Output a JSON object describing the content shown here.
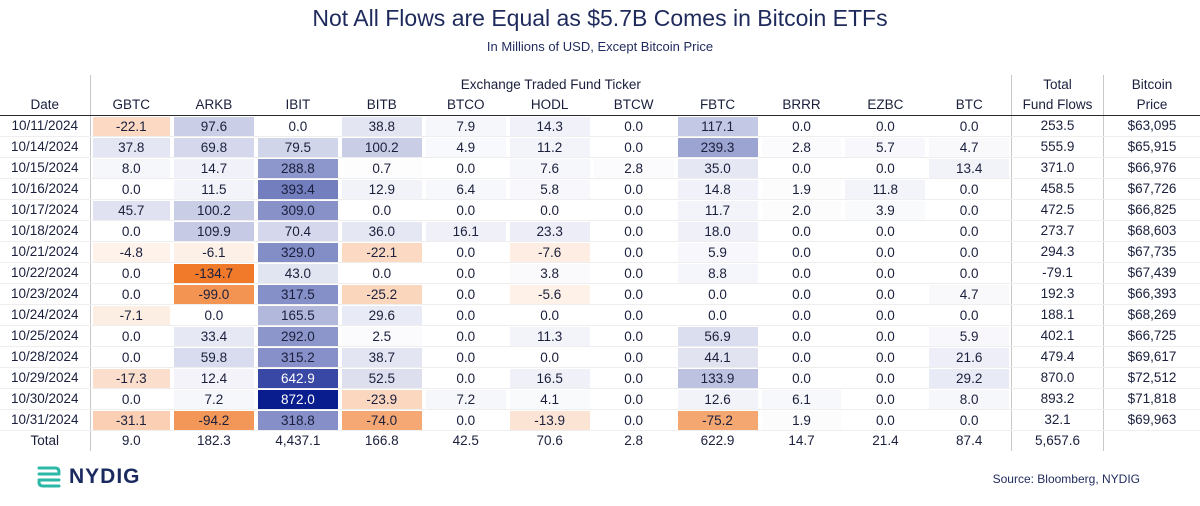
{
  "header": {
    "title": "Not All Flows are Equal as $5.7B Comes in Bitcoin ETFs",
    "subtitle": "In Millions of USD, Except Bitcoin Price"
  },
  "chart_data": {
    "type": "table",
    "group_label": "Exchange Traded Fund Ticker",
    "columns": {
      "date": "Date",
      "tickers": [
        "GBTC",
        "ARKB",
        "IBIT",
        "BITB",
        "BTCO",
        "HODL",
        "BTCW",
        "FBTC",
        "BRRR",
        "EZBC",
        "BTC"
      ],
      "total_line1": "Total",
      "total_line2": "Fund Flows",
      "price_line1": "Bitcoin",
      "price_line2": "Price"
    },
    "rows": [
      {
        "date": "10/11/2024",
        "values": [
          "-22.1",
          "97.6",
          "0.0",
          "38.8",
          "7.9",
          "14.3",
          "0.0",
          "117.1",
          "0.0",
          "0.0",
          "0.0"
        ],
        "total": "253.5",
        "price": "$63,095"
      },
      {
        "date": "10/14/2024",
        "values": [
          "37.8",
          "69.8",
          "79.5",
          "100.2",
          "4.9",
          "11.2",
          "0.0",
          "239.3",
          "2.8",
          "5.7",
          "4.7"
        ],
        "total": "555.9",
        "price": "$65,915"
      },
      {
        "date": "10/15/2024",
        "values": [
          "8.0",
          "14.7",
          "288.8",
          "0.7",
          "0.0",
          "7.6",
          "2.8",
          "35.0",
          "0.0",
          "0.0",
          "13.4"
        ],
        "total": "371.0",
        "price": "$66,976"
      },
      {
        "date": "10/16/2024",
        "values": [
          "0.0",
          "11.5",
          "393.4",
          "12.9",
          "6.4",
          "5.8",
          "0.0",
          "14.8",
          "1.9",
          "11.8",
          "0.0"
        ],
        "total": "458.5",
        "price": "$67,726"
      },
      {
        "date": "10/17/2024",
        "values": [
          "45.7",
          "100.2",
          "309.0",
          "0.0",
          "0.0",
          "0.0",
          "0.0",
          "11.7",
          "2.0",
          "3.9",
          "0.0"
        ],
        "total": "472.5",
        "price": "$66,825"
      },
      {
        "date": "10/18/2024",
        "values": [
          "0.0",
          "109.9",
          "70.4",
          "36.0",
          "16.1",
          "23.3",
          "0.0",
          "18.0",
          "0.0",
          "0.0",
          "0.0"
        ],
        "total": "273.7",
        "price": "$68,603"
      },
      {
        "date": "10/21/2024",
        "values": [
          "-4.8",
          "-6.1",
          "329.0",
          "-22.1",
          "0.0",
          "-7.6",
          "0.0",
          "5.9",
          "0.0",
          "0.0",
          "0.0"
        ],
        "total": "294.3",
        "price": "$67,735"
      },
      {
        "date": "10/22/2024",
        "values": [
          "0.0",
          "-134.7",
          "43.0",
          "0.0",
          "0.0",
          "3.8",
          "0.0",
          "8.8",
          "0.0",
          "0.0",
          "0.0"
        ],
        "total": "-79.1",
        "price": "$67,439"
      },
      {
        "date": "10/23/2024",
        "values": [
          "0.0",
          "-99.0",
          "317.5",
          "-25.2",
          "0.0",
          "-5.6",
          "0.0",
          "0.0",
          "0.0",
          "0.0",
          "4.7"
        ],
        "total": "192.3",
        "price": "$66,393"
      },
      {
        "date": "10/24/2024",
        "values": [
          "-7.1",
          "0.0",
          "165.5",
          "29.6",
          "0.0",
          "0.0",
          "0.0",
          "0.0",
          "0.0",
          "0.0",
          "0.0"
        ],
        "total": "188.1",
        "price": "$68,269"
      },
      {
        "date": "10/25/2024",
        "values": [
          "0.0",
          "33.4",
          "292.0",
          "2.5",
          "0.0",
          "11.3",
          "0.0",
          "56.9",
          "0.0",
          "0.0",
          "5.9"
        ],
        "total": "402.1",
        "price": "$66,725"
      },
      {
        "date": "10/28/2024",
        "values": [
          "0.0",
          "59.8",
          "315.2",
          "38.7",
          "0.0",
          "0.0",
          "0.0",
          "44.1",
          "0.0",
          "0.0",
          "21.6"
        ],
        "total": "479.4",
        "price": "$69,617"
      },
      {
        "date": "10/29/2024",
        "values": [
          "-17.3",
          "12.4",
          "642.9",
          "52.5",
          "0.0",
          "16.5",
          "0.0",
          "133.9",
          "0.0",
          "0.0",
          "29.2"
        ],
        "total": "870.0",
        "price": "$72,512"
      },
      {
        "date": "10/30/2024",
        "values": [
          "0.0",
          "7.2",
          "872.0",
          "-23.9",
          "7.2",
          "4.1",
          "0.0",
          "12.6",
          "6.1",
          "0.0",
          "8.0"
        ],
        "total": "893.2",
        "price": "$71,818"
      },
      {
        "date": "10/31/2024",
        "values": [
          "-31.1",
          "-94.2",
          "318.8",
          "-74.0",
          "0.0",
          "-13.9",
          "0.0",
          "-75.2",
          "1.9",
          "0.0",
          "0.0"
        ],
        "total": "32.1",
        "price": "$69,963"
      }
    ],
    "totals": {
      "label": "Total",
      "values": [
        "9.0",
        "182.3",
        "4,437.1",
        "166.8",
        "42.5",
        "70.6",
        "2.8",
        "622.9",
        "14.7",
        "21.4",
        "87.4"
      ],
      "total": "5,657.6",
      "price": ""
    },
    "colors": {
      "positive_max": "#0a1d8f",
      "negative_max": "#f07a2a",
      "text_dark": "#1a1f3c"
    }
  },
  "footer": {
    "logo_text": "NYDIG",
    "logo_icon": "nydig-logo-icon",
    "source": "Source: Bloomberg, NYDIG"
  }
}
